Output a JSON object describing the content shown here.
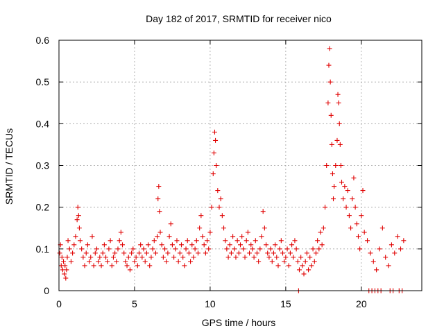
{
  "chart_data": {
    "type": "scatter",
    "title": "Day 182 of 2017, SRMTID for receiver nico",
    "xlabel": "GPS time / hours",
    "ylabel": "SRMTID / TECUs",
    "xlim": [
      0,
      24
    ],
    "ylim": [
      0,
      0.6
    ],
    "x_ticks": [
      0,
      5,
      10,
      15,
      20
    ],
    "x_tick_labels": [
      "0",
      "5",
      "10",
      "15",
      "20"
    ],
    "y_ticks": [
      0,
      0.1,
      0.2,
      0.3,
      0.4,
      0.5,
      0.6
    ],
    "y_tick_labels": [
      "0",
      "0.1",
      "0.2",
      "0.3",
      "0.4",
      "0.5",
      "0.6"
    ],
    "grid": true,
    "marker": "plus",
    "color": "#e00000",
    "series": [
      {
        "name": "SRMTID",
        "x": [
          0.05,
          0.1,
          0.15,
          0.2,
          0.25,
          0.3,
          0.35,
          0.4,
          0.45,
          0.5,
          0.55,
          0.6,
          0.7,
          0.8,
          0.9,
          1.0,
          1.1,
          1.2,
          1.25,
          1.3,
          1.35,
          1.4,
          1.5,
          1.6,
          1.7,
          1.8,
          1.9,
          2.0,
          2.1,
          2.2,
          2.3,
          2.4,
          2.5,
          2.6,
          2.7,
          2.8,
          2.9,
          3.0,
          3.1,
          3.2,
          3.3,
          3.4,
          3.5,
          3.6,
          3.7,
          3.8,
          3.9,
          4.0,
          4.1,
          4.2,
          4.3,
          4.4,
          4.5,
          4.6,
          4.7,
          4.8,
          4.9,
          5.0,
          5.1,
          5.2,
          5.3,
          5.4,
          5.5,
          5.6,
          5.7,
          5.8,
          5.9,
          6.0,
          6.1,
          6.2,
          6.3,
          6.4,
          6.5,
          6.55,
          6.6,
          6.65,
          6.7,
          6.8,
          6.9,
          7.0,
          7.1,
          7.2,
          7.3,
          7.4,
          7.5,
          7.6,
          7.7,
          7.8,
          7.9,
          8.0,
          8.1,
          8.2,
          8.3,
          8.4,
          8.5,
          8.6,
          8.7,
          8.8,
          8.9,
          9.0,
          9.1,
          9.2,
          9.3,
          9.4,
          9.5,
          9.6,
          9.7,
          9.8,
          9.9,
          10.0,
          10.1,
          10.2,
          10.25,
          10.3,
          10.35,
          10.4,
          10.5,
          10.6,
          10.7,
          10.8,
          10.9,
          11.0,
          11.1,
          11.2,
          11.3,
          11.4,
          11.5,
          11.6,
          11.7,
          11.8,
          11.9,
          12.0,
          12.1,
          12.2,
          12.3,
          12.4,
          12.5,
          12.6,
          12.7,
          12.8,
          12.9,
          13.0,
          13.1,
          13.2,
          13.3,
          13.4,
          13.5,
          13.6,
          13.7,
          13.8,
          13.9,
          14.0,
          14.1,
          14.2,
          14.3,
          14.4,
          14.5,
          14.6,
          14.7,
          14.8,
          14.9,
          15.0,
          15.1,
          15.2,
          15.3,
          15.4,
          15.5,
          15.6,
          15.7,
          15.8,
          15.9,
          16.0,
          16.1,
          16.2,
          16.3,
          16.4,
          16.5,
          16.6,
          16.7,
          16.8,
          16.9,
          17.0,
          17.1,
          17.2,
          17.3,
          17.4,
          17.5,
          17.6,
          17.7,
          17.8,
          17.85,
          17.9,
          17.95,
          18.0,
          18.05,
          18.1,
          18.15,
          18.2,
          18.3,
          18.4,
          18.45,
          18.5,
          18.55,
          18.6,
          18.65,
          18.7,
          18.8,
          18.9,
          19.0,
          19.1,
          19.2,
          19.3,
          19.4,
          19.5,
          19.6,
          19.7,
          19.8,
          19.9,
          20.0,
          20.1,
          20.2,
          20.4,
          20.6,
          20.8,
          21.0,
          21.2,
          21.4,
          21.6,
          21.8,
          22.0,
          22.2,
          22.4,
          22.6,
          22.8,
          15.85,
          20.5,
          20.7,
          20.9,
          21.1,
          21.3,
          21.9,
          22.1,
          22.5,
          22.7
        ],
        "y": [
          0.09,
          0.11,
          0.06,
          0.08,
          0.05,
          0.07,
          0.04,
          0.06,
          0.03,
          0.05,
          0.08,
          0.12,
          0.1,
          0.07,
          0.09,
          0.11,
          0.13,
          0.17,
          0.2,
          0.18,
          0.15,
          0.12,
          0.1,
          0.08,
          0.06,
          0.09,
          0.11,
          0.07,
          0.08,
          0.13,
          0.06,
          0.09,
          0.1,
          0.07,
          0.08,
          0.06,
          0.09,
          0.11,
          0.08,
          0.07,
          0.1,
          0.12,
          0.06,
          0.08,
          0.09,
          0.07,
          0.1,
          0.12,
          0.14,
          0.11,
          0.09,
          0.07,
          0.06,
          0.08,
          0.05,
          0.09,
          0.1,
          0.07,
          0.08,
          0.06,
          0.09,
          0.11,
          0.08,
          0.1,
          0.07,
          0.09,
          0.11,
          0.06,
          0.08,
          0.1,
          0.12,
          0.09,
          0.13,
          0.22,
          0.25,
          0.19,
          0.14,
          0.11,
          0.08,
          0.1,
          0.07,
          0.09,
          0.13,
          0.16,
          0.11,
          0.08,
          0.1,
          0.12,
          0.07,
          0.09,
          0.11,
          0.08,
          0.06,
          0.1,
          0.12,
          0.09,
          0.07,
          0.11,
          0.08,
          0.1,
          0.12,
          0.09,
          0.15,
          0.18,
          0.13,
          0.11,
          0.09,
          0.12,
          0.1,
          0.14,
          0.2,
          0.28,
          0.33,
          0.38,
          0.36,
          0.3,
          0.24,
          0.2,
          0.22,
          0.18,
          0.15,
          0.12,
          0.1,
          0.08,
          0.11,
          0.09,
          0.13,
          0.1,
          0.08,
          0.12,
          0.09,
          0.11,
          0.13,
          0.1,
          0.08,
          0.12,
          0.14,
          0.09,
          0.11,
          0.1,
          0.08,
          0.12,
          0.09,
          0.07,
          0.1,
          0.13,
          0.19,
          0.15,
          0.11,
          0.09,
          0.08,
          0.1,
          0.07,
          0.09,
          0.11,
          0.08,
          0.06,
          0.1,
          0.12,
          0.09,
          0.07,
          0.08,
          0.1,
          0.06,
          0.09,
          0.11,
          0.08,
          0.12,
          0.1,
          0.07,
          0.05,
          0.08,
          0.06,
          0.04,
          0.07,
          0.09,
          0.05,
          0.08,
          0.06,
          0.1,
          0.07,
          0.09,
          0.12,
          0.1,
          0.14,
          0.11,
          0.15,
          0.2,
          0.3,
          0.45,
          0.54,
          0.58,
          0.5,
          0.42,
          0.35,
          0.28,
          0.22,
          0.25,
          0.3,
          0.36,
          0.47,
          0.45,
          0.4,
          0.35,
          0.3,
          0.26,
          0.22,
          0.25,
          0.2,
          0.24,
          0.18,
          0.15,
          0.22,
          0.27,
          0.2,
          0.16,
          0.13,
          0.1,
          0.18,
          0.24,
          0.14,
          0.12,
          0.09,
          0.07,
          0.05,
          0.1,
          0.15,
          0.08,
          0.06,
          0.11,
          0.09,
          0.13,
          0.1,
          0.12,
          0.0,
          0.0,
          0.0,
          0.0,
          0.0,
          0.0,
          0.0,
          0.0,
          0.0,
          0.0
        ]
      }
    ]
  }
}
